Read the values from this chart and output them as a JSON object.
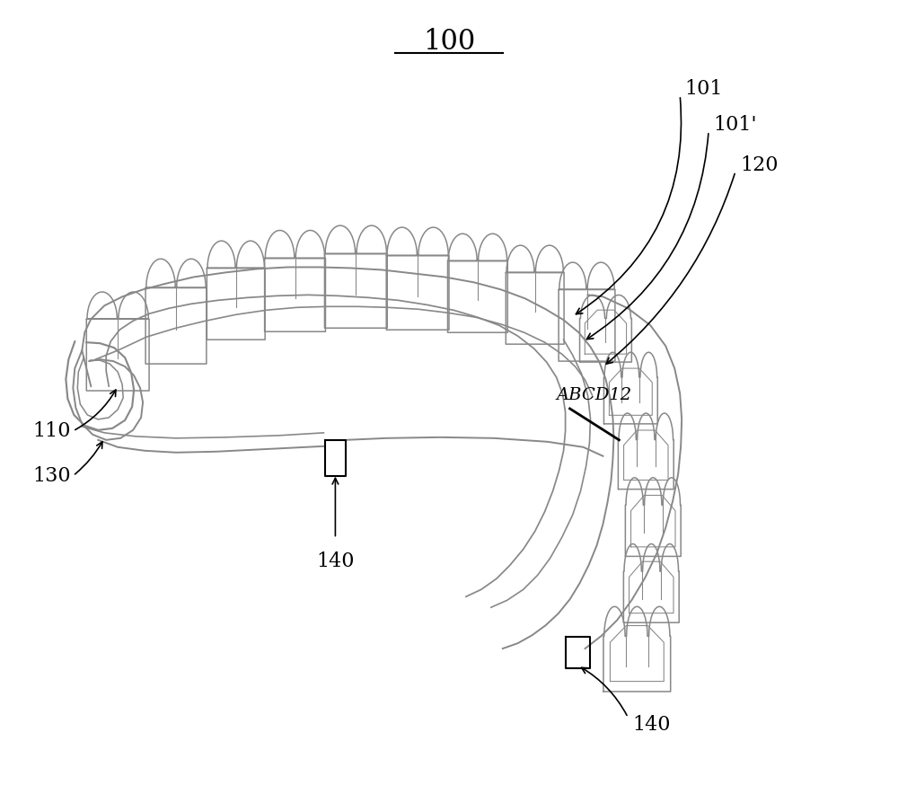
{
  "bg_color": "#ffffff",
  "line_color_gray": "#888888",
  "line_color_black": "#000000",
  "lw_main": 1.4,
  "lw_tooth": 1.1,
  "figsize": [
    10.0,
    8.74
  ]
}
